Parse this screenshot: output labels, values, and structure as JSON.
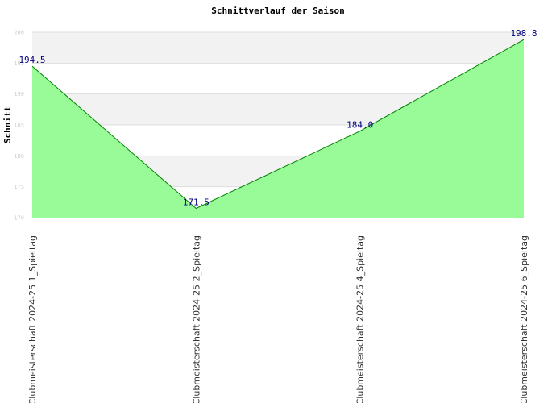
{
  "chart_data": {
    "type": "area",
    "title": "Schnittverlauf der Saison",
    "xlabel": "",
    "ylabel": "Schnitt",
    "categories": [
      "Clubmeisterschaft 2024-25  1_Spieltag",
      "Clubmeisterschaft 2024-25  2_Spieltag",
      "Clubmeisterschaft 2024-25  4_Spieltag",
      "Clubmeisterschaft 2024-25  6_Spieltag"
    ],
    "series": [
      {
        "values": [
          194.5,
          171.5,
          184.0,
          198.8
        ]
      }
    ],
    "data_labels": [
      "194.5",
      "171.5",
      "184.0",
      "198.8"
    ],
    "yticks": [
      170,
      175,
      180,
      185,
      190,
      195,
      200
    ],
    "ytick_labels": [
      "170",
      "175",
      "180",
      "185",
      "190",
      "195",
      "200"
    ],
    "ylim": [
      170,
      200
    ],
    "grid": true,
    "legend": "none",
    "colors": {
      "fill": "#98fb98",
      "line": "#008000",
      "band": "#f2f2f2",
      "grid": "#dddddd",
      "data_label": "#000080"
    }
  }
}
